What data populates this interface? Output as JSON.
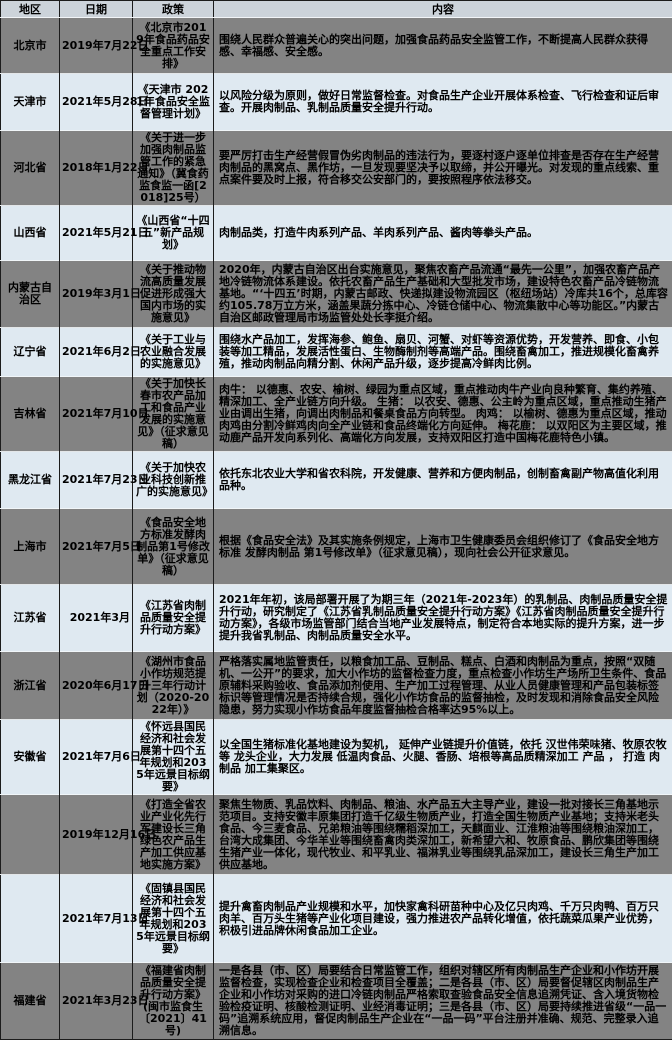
{
  "table": {
    "columns": [
      "地区",
      "日期",
      "政策",
      "内容"
    ],
    "rows": [
      {
        "region": "北京市",
        "date": "2019年7月22日",
        "policy": "《北京市2019年食品药品安全重点工作安排》",
        "content": "围绕人民群众普遍关心的突出问题，加强食品药品安全监管工作，不断提高人民群众获得感、幸福感、安全感。"
      },
      {
        "region": "天津市",
        "date": "2021年5月28日",
        "policy": "《天津市 2021年食品安全监督管理计划》",
        "content": "以风险分级为原则，做好日常监督检查。对食品生产企业开展体系检查、飞行检查和证后审查。开展肉制品、乳制品质量安全提升行动。"
      },
      {
        "region": "河北省",
        "date": "2018年1月22日",
        "policy": "《关于进一步加强肉制品监管工作的紧急通知》（冀食药监食监一函[2018]25号）",
        "content": "要严厉打击生产经营假冒伪劣肉制品的违法行为，要逐村逐户逐单位排查是否存在生产经营肉制品的黑窝点、黑作坊，一旦发现要坚决予以取缔，并公开曝光。对发现的重点线索、重点案件要及时上报，符合移交公安部门的，要按照程序依法移交。"
      },
      {
        "region": "山西省",
        "date": "2021年5月21日",
        "policy": "《山西省“十四五”新产品规划》",
        "content": "肉制品类，打造牛肉系列产品、羊肉系列产品、酱肉等拳头产品。"
      },
      {
        "region": "内蒙古自治区",
        "date": "2019年3月1日",
        "policy": "《关于推动物流高质量发展促进形成强大国内市场的实施意见》",
        "content": "2020年，内蒙古自治区出台实施意见，聚焦农畜产品流通“最先一公里”，加强农畜产品产地冷链物流体系建设。依托农畜产品生产基础和大型批发市场，建设特色农畜产品冷链物流基地。“‘十四五’时期，内蒙古邮政、快递拟建设物流园区（枢纽场站）冷库共16个，总库容约105.78万立方米，涵盖果蔬分拣中心、冷链仓储中心、物流集散中心等功能区。”内蒙古自治区邮政管理局市场监管处处长李挺介绍。"
      },
      {
        "region": "辽宁省",
        "date": "2021年6月2日",
        "policy": "《关于工业与农业融合发展的实施意见》",
        "content": "围绕水产品加工，发挥海参、鲍鱼、扇贝、河蟹、对虾等资源优势，开发营养、即食、小包装等加工精品，发展活性蛋白、生物酶制剂等高端产品。围绕畜禽加工，推进规模化畜禽养殖，推动肉制品向精分割、休闲产品升级，逐步提高冷鲜肉比例。"
      },
      {
        "region": "吉林省",
        "date": "2021年7月10日",
        "policy": "《关于加快长春市农产品加工和食品产业发展的实施意见》（征求意见稿）",
        "content": "肉牛： 以德惠、农安、榆树、绿园为重点区域，重点推动肉牛产业向良种繁育、集约养殖、精深加工、全产业链方向升级。 生猪： 以农安、德惠、公主岭为重点区域，重点推动生猪产业由调出生猪，向调出肉制品和餐桌食品方向转型。 肉鸡： 以榆树、德惠为重点区域，推动肉鸡由分割冷鲜鸡肉向全产业链和食品终端化方向延伸。 梅花鹿： 以双阳区为主要区域，推动鹿产品开发向系列化、高端化方向发展，支持双阳区打造中国梅花鹿特色小镇。"
      },
      {
        "region": "黑龙江省",
        "date": "2021年7月23日",
        "policy": "《关于加快农业科技创新推广的实施意见》",
        "content": "依托东北农业大学和省农科院，开发健康、营养和方便肉制品，创制畜禽副产物高值化利用品种。"
      },
      {
        "region": "上海市",
        "date": "2021年7月5日",
        "policy": "《食品安全地方标准发酵肉制品第1号修改单》（征求意见稿）",
        "content": "根据《食品安全法》及其实施条例规定，上海市卫生健康委员会组织修订了《食品安全地方标准 发酵肉制品 第1号修改单》（征求意见稿），现向社会公开征求意见。"
      },
      {
        "region": "江苏省",
        "date": "2021年3月",
        "policy": "《江苏省肉制品质量安全提升行动方案》",
        "content": "2021年年初，该局部署开展了为期三年（2021年-2023年）的乳制品、肉制品质量安全提升行动，研究制定了《江苏省乳制品质量安全提升行动方案》《江苏省肉制品质量安全提升行动方案》，各级市场监管部门结合当地产业发展特点，制定符合本地实际的提升方案，进一步提升我省乳制品、肉制品质量安全水平。"
      },
      {
        "region": "浙江省",
        "date": "2020年6月17日",
        "policy": "《湖州市食品小作坊规范提升三年行动计划（2020-2022年）》",
        "content": "严格落实属地监管责任，以粮食加工品、豆制品、糕点、白酒和肉制品为重点，按照“双随机、一公开”的要求，加大小作坊的监督检查力度，重点检查小作坊生产场所卫生条件、食品原辅料采购验收、食品添加剂使用、生产加工过程管理、从业人员健康管理和产品包装标签标识等管理情况是否持续合规，强化小作坊食品的监督抽检，及时发现和消除食品安全风险隐患，努力实现小作坊食品年度监督抽检合格率达95%以上。"
      },
      {
        "region": "安徽省",
        "date": "2021年7月6日",
        "policy": "《怀远县国民经济和社会发展第十四个五年规划和2035年远景目标纲要》",
        "content": "以全国生猪标准化基地建设为契机， 延伸产业链提升价值链，依托 汉世伟荣味猪、牧原农牧等 龙头企业，大力发展 低温肉食品、火腿、香肠、培根等高品质精深加工 产品 ， 打造 肉制品 加工集聚区。"
      },
      {
        "region": "",
        "date": "2019年12月16日",
        "policy": "《打造全省农业产业化先行军建设长三角绿色农产品生产加工供应基地实施方案》",
        "content": "聚焦生物质、乳品饮料、肉制品、粮油、水产品五大主导产业，建设一批对接长三角基地示范项目。支持安徽丰原集团打造千亿级生物质产业，打造全国生物质产业基地；支持米老头食品、今三麦食品、兄弟粮油等围绕糯稻深加工，天麒面业、江淮粮油等围绕粮油深加工，台湾大成集团、今华羊业等围绕畜禽肉类深加工，新希望六和、牧原食品、鹏欣集团等围绕生猪产业一体化，现代牧业、和平乳业、福淋乳业等围绕乳品深加工，建设长三角生产加工供应基地。"
      },
      {
        "region": "",
        "date": "2021年7月13日",
        "policy": "《固镇县国民经济和社会发展第十四个五年规划和2035年远景目标纲要》",
        "content": "提升禽畜肉制品产业规模和水平，加快家禽科研苗种中心及亿只肉鸡、千万只肉鸭、百万只肉羊、百万头生猪等产业化项目建设，强力推进农产品转化增值，依托蔬菜瓜果产业优势，积极引进品牌休闲食品加工企业。"
      },
      {
        "region": "福建省",
        "date": "2021年3月23日",
        "policy": "《福建省肉制品质量安全提升行动方案》(闽市监食生〔2021〕41号)",
        "content": "一是各县（市、区）局要结合日常监管工作，组织对辖区所有肉制品生产企业和小作坊开展监督检查，实现检查企业和检查项目全覆盖；二是各县（市、区）局要督促辖区肉制品生产企业和小作坊对采购的进口冷链肉制品严格索取查验食品安全信息追溯凭证、含入境货物检验检疫证明、核酸检测证明、业经消毒证明；三是各县（市、区）局要持续推进省级“一品一码”追溯系统应用，督促肉制品生产企业在“一品一码”平台注册并准确、规范、完整录入追溯信息。"
      }
    ]
  },
  "colors": {
    "page_bg": "#dce6f1",
    "header_bg": "#ccd3da",
    "row_gray": "#838383",
    "row_light": "#dfe9f1",
    "border": "#1c1c1c",
    "text": "#000000"
  }
}
